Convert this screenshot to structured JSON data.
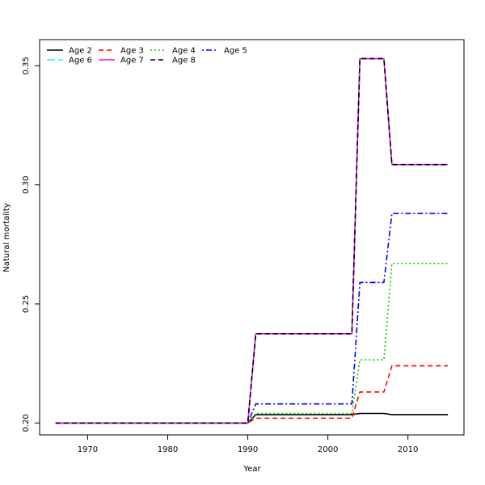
{
  "chart_data": {
    "type": "line",
    "title": "",
    "xlabel": "Year",
    "ylabel": "Natural mortality",
    "xlim": [
      1964,
      2017
    ],
    "ylim": [
      0.195,
      0.361
    ],
    "x_ticks": [
      1970,
      1980,
      1990,
      2000,
      2010
    ],
    "x_tick_labels": [
      "1970",
      "1980",
      "1990",
      "2000",
      "2010"
    ],
    "y_ticks": [
      0.2,
      0.25,
      0.3,
      0.35
    ],
    "y_tick_labels": [
      "0.20",
      "0.25",
      "0.30",
      "0.35"
    ],
    "grid": false,
    "legend_position": "top-left",
    "series": [
      {
        "name": "Age 2",
        "color": "#000000",
        "dash": "solid",
        "points": [
          [
            1966,
            0.2
          ],
          [
            1990,
            0.2
          ],
          [
            1991,
            0.2035
          ],
          [
            2003,
            0.2035
          ],
          [
            2004,
            0.204
          ],
          [
            2007,
            0.204
          ],
          [
            2008,
            0.2035
          ],
          [
            2015,
            0.2035
          ]
        ]
      },
      {
        "name": "Age 3",
        "color": "#ff0000",
        "dash": "dashed",
        "points": [
          [
            1966,
            0.2
          ],
          [
            1990,
            0.2
          ],
          [
            1991,
            0.202
          ],
          [
            2003,
            0.202
          ],
          [
            2004,
            0.213
          ],
          [
            2007,
            0.213
          ],
          [
            2008,
            0.224
          ],
          [
            2015,
            0.224
          ]
        ]
      },
      {
        "name": "Age 4",
        "color": "#00cd00",
        "dash": "dotted",
        "points": [
          [
            1966,
            0.2
          ],
          [
            1990,
            0.2
          ],
          [
            1991,
            0.204
          ],
          [
            2003,
            0.204
          ],
          [
            2004,
            0.2265
          ],
          [
            2007,
            0.2265
          ],
          [
            2008,
            0.267
          ],
          [
            2015,
            0.267
          ]
        ]
      },
      {
        "name": "Age 5",
        "color": "#0000ff",
        "dash": "dotdash",
        "points": [
          [
            1966,
            0.2
          ],
          [
            1990,
            0.2
          ],
          [
            1991,
            0.208
          ],
          [
            2003,
            0.208
          ],
          [
            2004,
            0.259
          ],
          [
            2007,
            0.259
          ],
          [
            2008,
            0.288
          ],
          [
            2015,
            0.288
          ]
        ]
      },
      {
        "name": "Age 6",
        "color": "#00ffff",
        "dash": "longdash",
        "points": [
          [
            1966,
            0.2
          ],
          [
            1990,
            0.2
          ],
          [
            1991,
            0.2375
          ],
          [
            2003,
            0.2375
          ],
          [
            2004,
            0.353
          ],
          [
            2007,
            0.353
          ],
          [
            2008,
            0.3085
          ],
          [
            2015,
            0.3085
          ]
        ]
      },
      {
        "name": "Age 7",
        "color": "#ff00ff",
        "dash": "solid",
        "points": [
          [
            1966,
            0.2
          ],
          [
            1990,
            0.2
          ],
          [
            1991,
            0.2375
          ],
          [
            2003,
            0.2375
          ],
          [
            2004,
            0.353
          ],
          [
            2007,
            0.353
          ],
          [
            2008,
            0.3085
          ],
          [
            2015,
            0.3085
          ]
        ]
      },
      {
        "name": "Age 8",
        "color": "#000000",
        "dash": "dashed",
        "points": [
          [
            1966,
            0.2
          ],
          [
            1990,
            0.2
          ],
          [
            1991,
            0.2375
          ],
          [
            2003,
            0.2375
          ],
          [
            2004,
            0.353
          ],
          [
            2007,
            0.353
          ],
          [
            2008,
            0.3085
          ],
          [
            2015,
            0.3085
          ]
        ]
      }
    ]
  }
}
